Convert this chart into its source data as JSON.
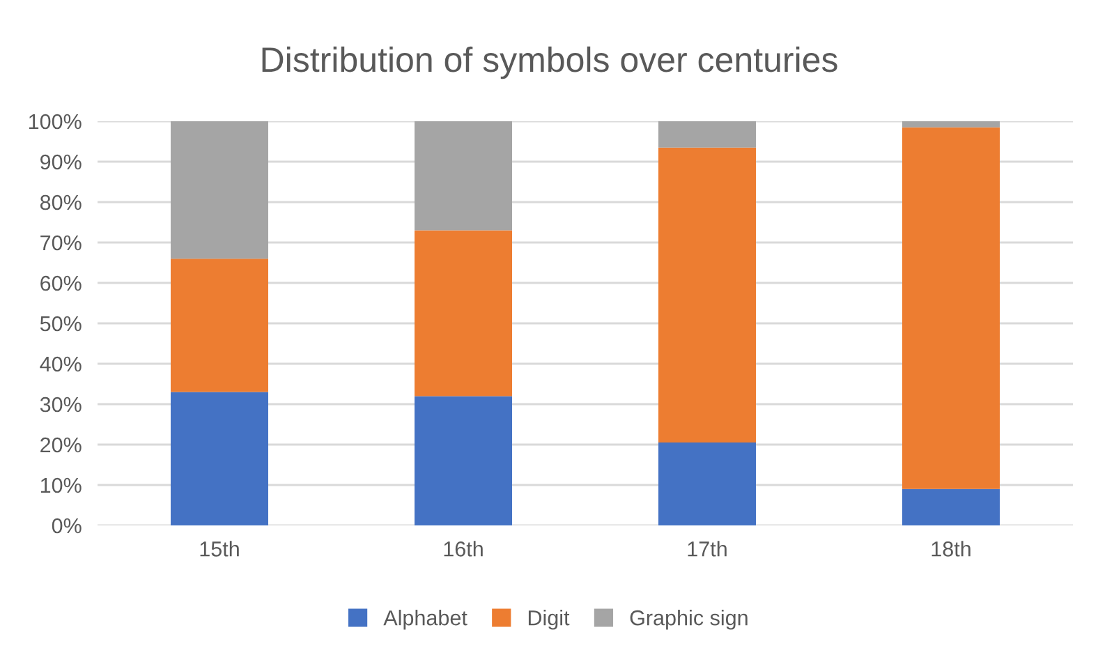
{
  "chart_data": {
    "type": "bar",
    "stacked": true,
    "title": "Distribution of symbols over centuries",
    "categories": [
      "15th",
      "16th",
      "17th",
      "18th"
    ],
    "series": [
      {
        "name": "Alphabet",
        "color": "#4472c4",
        "values": [
          33,
          32,
          20.5,
          9
        ]
      },
      {
        "name": "Digit",
        "color": "#ed7d31",
        "values": [
          33,
          41,
          73,
          89.5
        ]
      },
      {
        "name": "Graphic sign",
        "color": "#a5a5a5",
        "values": [
          34,
          27,
          6.5,
          1.5
        ]
      }
    ],
    "ylim": [
      0,
      100
    ],
    "yticks": [
      {
        "value": 0,
        "label": "0%"
      },
      {
        "value": 10,
        "label": "10%"
      },
      {
        "value": 20,
        "label": "20%"
      },
      {
        "value": 30,
        "label": "30%"
      },
      {
        "value": 40,
        "label": "40%"
      },
      {
        "value": 50,
        "label": "50%"
      },
      {
        "value": 60,
        "label": "60%"
      },
      {
        "value": 70,
        "label": "70%"
      },
      {
        "value": 80,
        "label": "80%"
      },
      {
        "value": 90,
        "label": "90%"
      },
      {
        "value": 100,
        "label": "100%"
      }
    ],
    "grid": "y",
    "legend": "bottom"
  }
}
